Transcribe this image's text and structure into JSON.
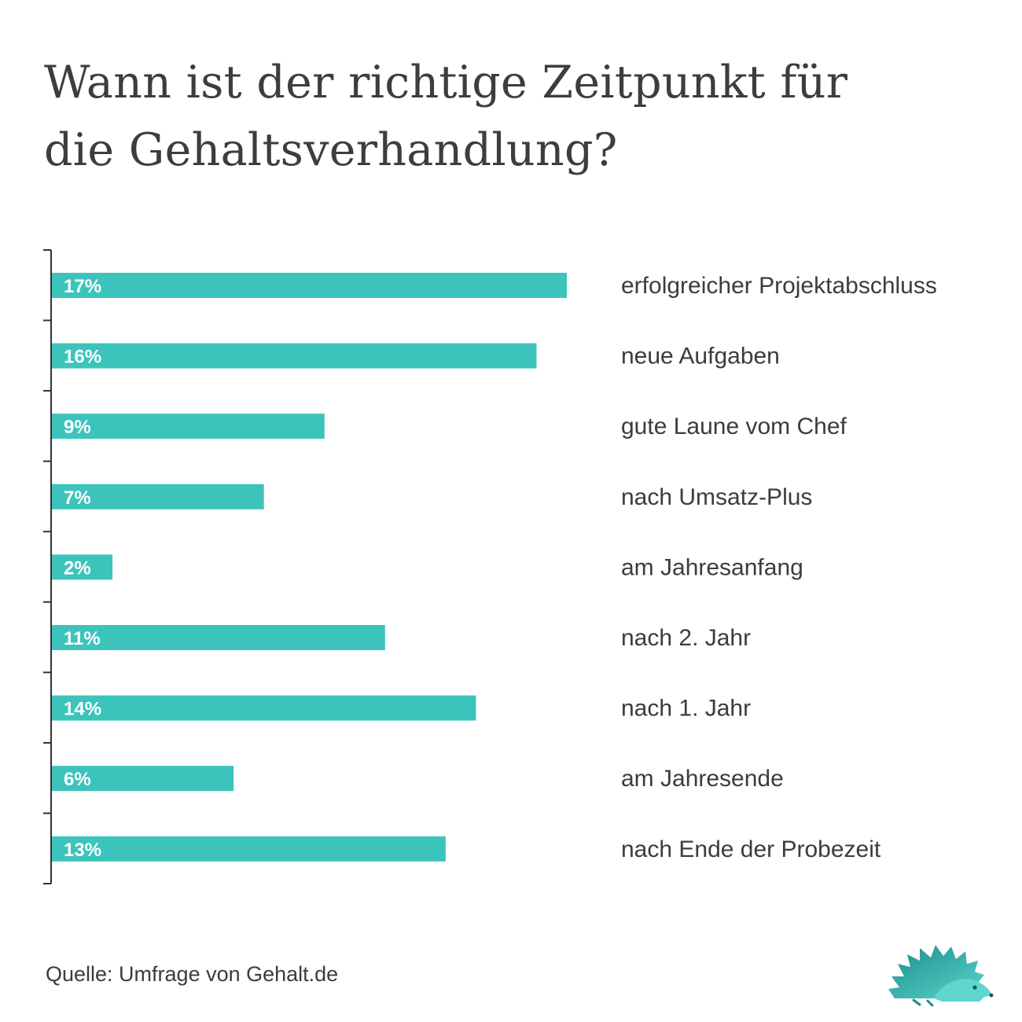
{
  "title": {
    "line1": "Wann ist der richtige Zeitpunkt für",
    "line2": "die Gehaltsverhandlung?"
  },
  "source": "Quelle: Umfrage von Gehalt.de",
  "colors": {
    "bar": "#3cc4bc",
    "axis": "#333333",
    "text": "#3c3c3c",
    "logo_dark": "#1a8c8a",
    "logo_light": "#5fd6ce"
  },
  "logo": "hedgehog-logo-icon",
  "chart_data": {
    "type": "bar",
    "orientation": "horizontal",
    "title": "Wann ist der richtige Zeitpunkt für die Gehaltsverhandlung?",
    "xlabel": "",
    "ylabel": "",
    "xlim": [
      0,
      17
    ],
    "grid": false,
    "legend": "none",
    "categories": [
      "erfolgreicher Projektabschluss",
      "neue Aufgaben",
      "gute Laune vom Chef",
      "nach Umsatz-Plus",
      "am Jahresanfang",
      "nach 2. Jahr",
      "nach 1. Jahr",
      "am Jahresende",
      "nach Ende der Probezeit"
    ],
    "values": [
      17,
      16,
      9,
      7,
      2,
      11,
      14,
      6,
      13
    ],
    "value_labels": [
      "17%",
      "16%",
      "9%",
      "7%",
      "2%",
      "11%",
      "14%",
      "6%",
      "13%"
    ]
  }
}
